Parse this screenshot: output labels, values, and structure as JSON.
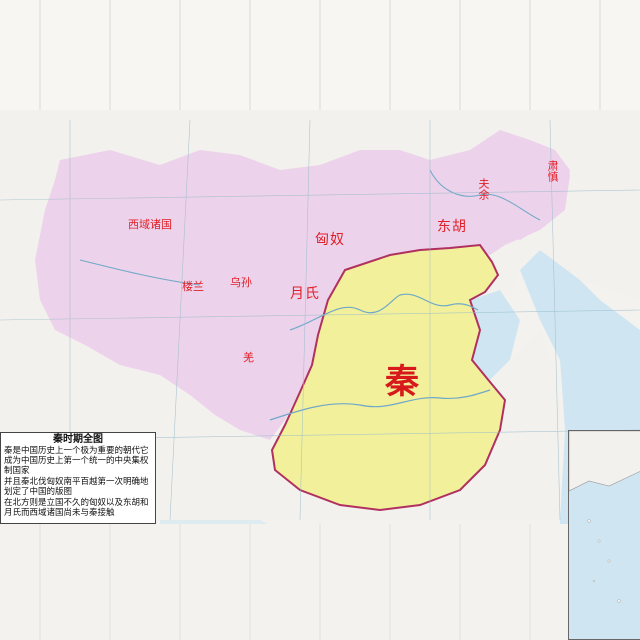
{
  "map_labels": {
    "qin": "秦",
    "xiongnu": "匈奴",
    "donghu": "东胡",
    "yuezhi": "月氏",
    "wusun": "乌孙",
    "loulan": "楼兰",
    "qiang": "羌",
    "western_regions": "西域诸国",
    "fuyu": "夫余",
    "sushen": "肃慎"
  },
  "legend": {
    "title": "秦时期全图",
    "paragraphs": [
      "秦是中国历史上一个极为重要的朝代它成为中国历史上第一个统一的中央集权制国家",
      "并且秦北伐匈奴南平百越第一次明确地划定了中国的版图",
      "在北方则是立国不久的匈奴以及东胡和月氏而西域诸国尚未与秦接触"
    ]
  },
  "colors": {
    "qin_territory": "#f2f09a",
    "steppe_region": "#ecd2ea",
    "land": "#f3f1ed",
    "sea": "#cfe6f2",
    "border": "#b03060",
    "label": "#e0202a"
  }
}
